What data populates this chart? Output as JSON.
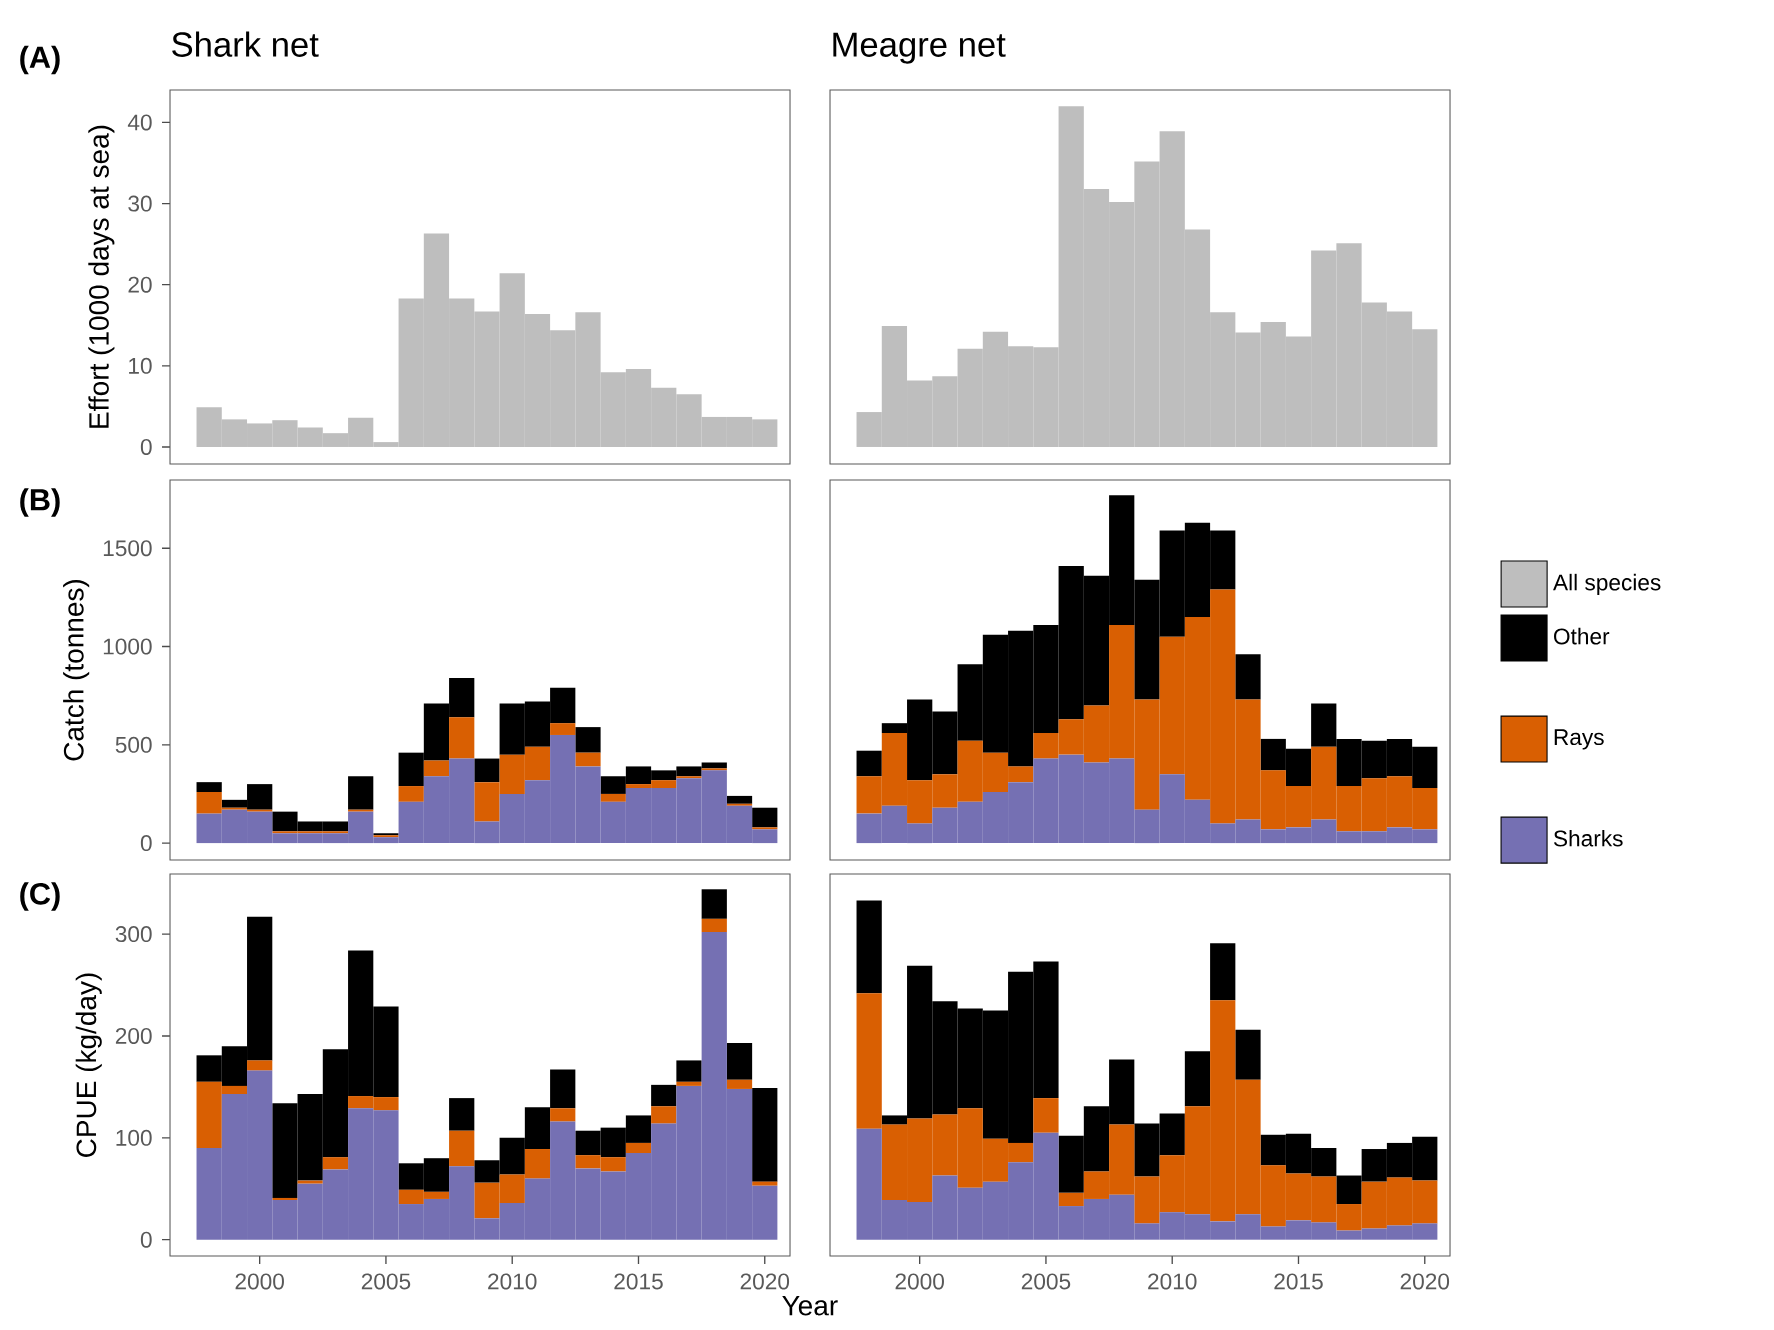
{
  "chart_data": [
    {
      "type": "bar",
      "title": "Shark net",
      "ylabel": "Effort (1000 days at sea)",
      "annotations": [
        "(A)"
      ],
      "tick_labels": "y",
      "legend": "right",
      "x": [
        1998,
        1999,
        2000,
        2001,
        2002,
        2003,
        2004,
        2005,
        2006,
        2007,
        2008,
        2009,
        2010,
        2011,
        2012,
        2013,
        2014,
        2015,
        2016,
        2017,
        2018,
        2019,
        2020
      ],
      "xlim": [
        1996.45,
        2021.0
      ],
      "xticks": [
        2000,
        2005,
        2010,
        2015,
        2020
      ],
      "ylim": [
        -2.1,
        44.0
      ],
      "yticks": [
        0,
        10,
        20,
        30,
        40
      ],
      "series": [
        {
          "name": "All species",
          "color": "#bebebe",
          "values": [
            4.9,
            3.4,
            2.9,
            3.3,
            2.4,
            1.7,
            3.6,
            0.6,
            18.3,
            26.3,
            18.3,
            16.7,
            21.4,
            16.4,
            14.4,
            16.6,
            9.2,
            9.6,
            7.3,
            6.5,
            3.7,
            3.7,
            3.4
          ]
        }
      ]
    },
    {
      "type": "bar",
      "title": "Meagre net",
      "tick_labels": false,
      "x": [
        1998,
        1999,
        2000,
        2001,
        2002,
        2003,
        2004,
        2005,
        2006,
        2007,
        2008,
        2009,
        2010,
        2011,
        2012,
        2013,
        2014,
        2015,
        2016,
        2017,
        2018,
        2019,
        2020
      ],
      "xlim": [
        1996.45,
        2021.0
      ],
      "xticks": [
        2000,
        2005,
        2010,
        2015,
        2020
      ],
      "ylim": [
        -2.1,
        44.0
      ],
      "yticks": [
        0,
        10,
        20,
        30,
        40
      ],
      "series": [
        {
          "color": "#bebebe",
          "values": [
            4.3,
            14.9,
            8.2,
            8.7,
            12.1,
            14.2,
            12.4,
            12.3,
            42.0,
            31.8,
            30.2,
            35.2,
            38.9,
            26.8,
            16.6,
            14.1,
            15.4,
            13.6,
            24.2,
            25.1,
            17.8,
            16.7,
            14.5
          ]
        }
      ]
    },
    {
      "type": "bar",
      "stacked": true,
      "ylabel": "Catch (tonnes)",
      "annotations": [
        "(B)"
      ],
      "tick_labels": "y",
      "x": [
        1998,
        1999,
        2000,
        2001,
        2002,
        2003,
        2004,
        2005,
        2006,
        2007,
        2008,
        2009,
        2010,
        2011,
        2012,
        2013,
        2014,
        2015,
        2016,
        2017,
        2018,
        2019,
        2020
      ],
      "xlim": [
        1996.45,
        2021.0
      ],
      "xticks": [
        2000,
        2005,
        2010,
        2015,
        2020
      ],
      "ylim": [
        -86,
        1847
      ],
      "yticks": [
        0,
        500,
        1000,
        1500
      ],
      "series": [
        {
          "color": "#7570b3",
          "values": [
            150,
            170,
            160,
            50,
            50,
            50,
            160,
            30,
            210,
            340,
            430,
            110,
            250,
            320,
            550,
            390,
            210,
            280,
            280,
            330,
            370,
            190,
            70
          ]
        },
        {
          "color": "#d95f02",
          "values": [
            110,
            10,
            10,
            10,
            10,
            10,
            10,
            10,
            80,
            80,
            210,
            200,
            200,
            170,
            60,
            70,
            40,
            20,
            40,
            10,
            10,
            10,
            10
          ]
        },
        {
          "color": "#000000",
          "values": [
            50,
            40,
            130,
            100,
            50,
            50,
            170,
            10,
            170,
            290,
            200,
            120,
            260,
            230,
            180,
            130,
            90,
            90,
            50,
            50,
            30,
            40,
            100
          ]
        }
      ]
    },
    {
      "type": "bar",
      "stacked": true,
      "legend": "right",
      "tick_labels": false,
      "x": [
        1998,
        1999,
        2000,
        2001,
        2002,
        2003,
        2004,
        2005,
        2006,
        2007,
        2008,
        2009,
        2010,
        2011,
        2012,
        2013,
        2014,
        2015,
        2016,
        2017,
        2018,
        2019,
        2020
      ],
      "xlim": [
        1996.45,
        2021.0
      ],
      "xticks": [
        2000,
        2005,
        2010,
        2015,
        2020
      ],
      "ylim": [
        -86,
        1847
      ],
      "yticks": [
        0,
        500,
        1000,
        1500
      ],
      "series": [
        {
          "name": "Sharks",
          "color": "#7570b3",
          "values": [
            150,
            190,
            100,
            180,
            210,
            260,
            310,
            430,
            450,
            410,
            430,
            170,
            350,
            220,
            100,
            120,
            70,
            80,
            120,
            60,
            60,
            80,
            70
          ]
        },
        {
          "name": "Rays",
          "color": "#d95f02",
          "values": [
            190,
            370,
            220,
            170,
            310,
            200,
            80,
            130,
            180,
            290,
            680,
            560,
            700,
            930,
            1190,
            610,
            300,
            210,
            370,
            230,
            270,
            260,
            210
          ]
        },
        {
          "name": "Other",
          "color": "#000000",
          "values": [
            130,
            50,
            410,
            320,
            390,
            600,
            690,
            550,
            780,
            660,
            660,
            610,
            540,
            480,
            300,
            230,
            160,
            190,
            220,
            240,
            190,
            190,
            210
          ]
        }
      ]
    },
    {
      "type": "bar",
      "stacked": true,
      "ylabel": "CPUE (kg/day)",
      "xlabel": "Year",
      "annotations": [
        "(C)"
      ],
      "x": [
        1998,
        1999,
        2000,
        2001,
        2002,
        2003,
        2004,
        2005,
        2006,
        2007,
        2008,
        2009,
        2010,
        2011,
        2012,
        2013,
        2014,
        2015,
        2016,
        2017,
        2018,
        2019,
        2020
      ],
      "xlim": [
        1996.45,
        2021.0
      ],
      "xticks": [
        2000,
        2005,
        2010,
        2015,
        2020
      ],
      "ylim": [
        -16,
        359
      ],
      "yticks": [
        0,
        100,
        200,
        300
      ],
      "series": [
        {
          "color": "#7570b3",
          "values": [
            90,
            143,
            166,
            39,
            55,
            69,
            129,
            127,
            35,
            40,
            72,
            21,
            36,
            60,
            116,
            70,
            67,
            85,
            114,
            151,
            302,
            148,
            53
          ]
        },
        {
          "color": "#d95f02",
          "values": [
            65,
            8,
            10,
            2,
            3,
            12,
            12,
            13,
            14,
            7,
            35,
            35,
            28,
            29,
            13,
            13,
            14,
            10,
            17,
            4,
            13,
            9,
            4
          ]
        },
        {
          "color": "#000000",
          "values": [
            26,
            39,
            141,
            93,
            85,
            106,
            143,
            89,
            26,
            33,
            32,
            22,
            36,
            41,
            38,
            24,
            29,
            27,
            21,
            21,
            29,
            36,
            92
          ]
        }
      ]
    },
    {
      "type": "bar",
      "stacked": true,
      "tick_labels": "x",
      "x": [
        1998,
        1999,
        2000,
        2001,
        2002,
        2003,
        2004,
        2005,
        2006,
        2007,
        2008,
        2009,
        2010,
        2011,
        2012,
        2013,
        2014,
        2015,
        2016,
        2017,
        2018,
        2019,
        2020
      ],
      "xlim": [
        1996.45,
        2021.0
      ],
      "xticks": [
        2000,
        2005,
        2010,
        2015,
        2020
      ],
      "ylim": [
        -16,
        359
      ],
      "yticks": [
        0,
        100,
        200,
        300
      ],
      "series": [
        {
          "color": "#7570b3",
          "values": [
            109,
            39,
            37,
            63,
            51,
            57,
            76,
            105,
            33,
            40,
            44,
            16,
            27,
            25,
            18,
            25,
            13,
            19,
            17,
            9,
            11,
            14,
            16
          ]
        },
        {
          "color": "#d95f02",
          "values": [
            133,
            74,
            82,
            60,
            78,
            42,
            19,
            34,
            13,
            27,
            69,
            46,
            56,
            106,
            217,
            132,
            60,
            46,
            45,
            26,
            46,
            47,
            42
          ]
        },
        {
          "color": "#000000",
          "values": [
            91,
            9,
            150,
            111,
            98,
            126,
            168,
            134,
            56,
            64,
            64,
            52,
            41,
            54,
            56,
            49,
            30,
            39,
            28,
            28,
            32,
            34,
            43
          ]
        }
      ]
    }
  ]
}
